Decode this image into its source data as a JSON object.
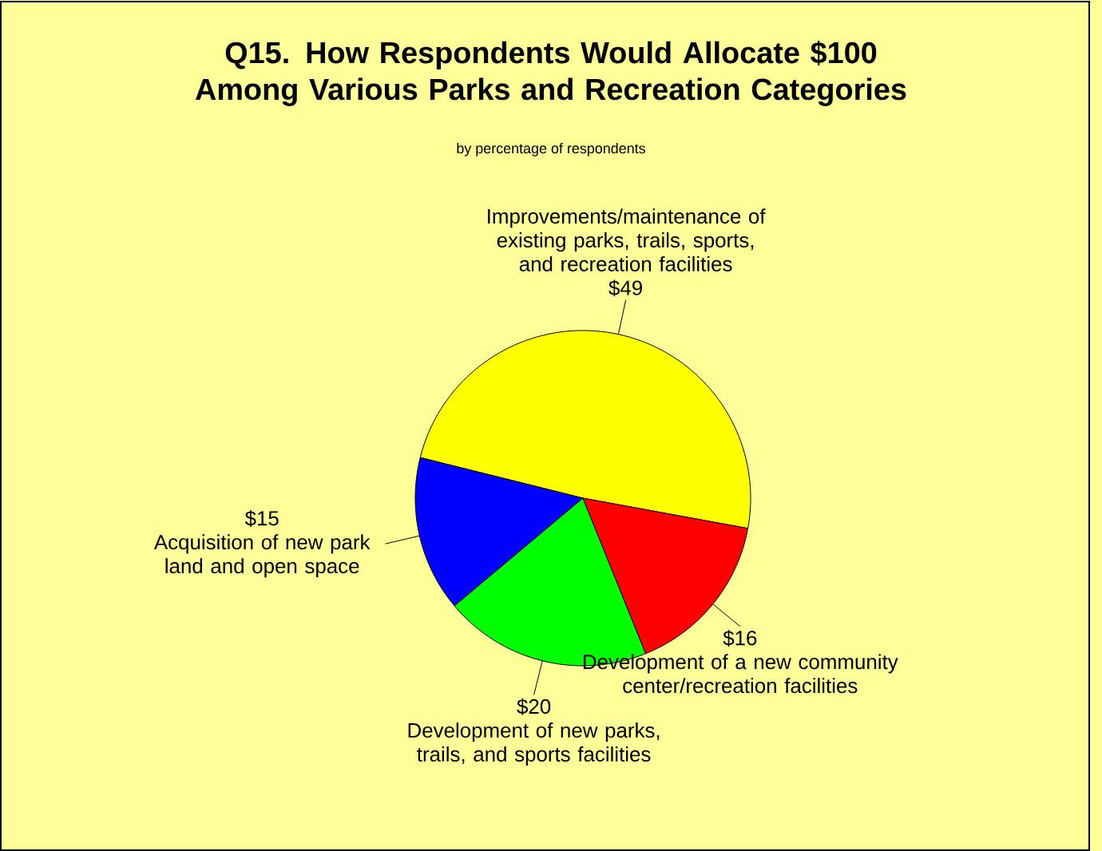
{
  "chart_data": {
    "type": "pie",
    "title": "Q15. How Respondents Would Allocate $100 Among Various Parks and Recreation Categories",
    "subtitle": "by percentage of respondents",
    "categories": [
      "Improvements/maintenance of existing parks, trails, sports, and recreation facilities",
      "Acquisition of new park land and open space",
      "Development of new parks, trails, and sports facilities",
      "Development of a new community center/recreation facilities"
    ],
    "values": [
      49,
      15,
      20,
      16
    ],
    "value_labels": [
      "$49",
      "$15",
      "$20",
      "$16"
    ],
    "colors": [
      "#ffff00",
      "#0000ff",
      "#00ff00",
      "#ff0000"
    ]
  }
}
